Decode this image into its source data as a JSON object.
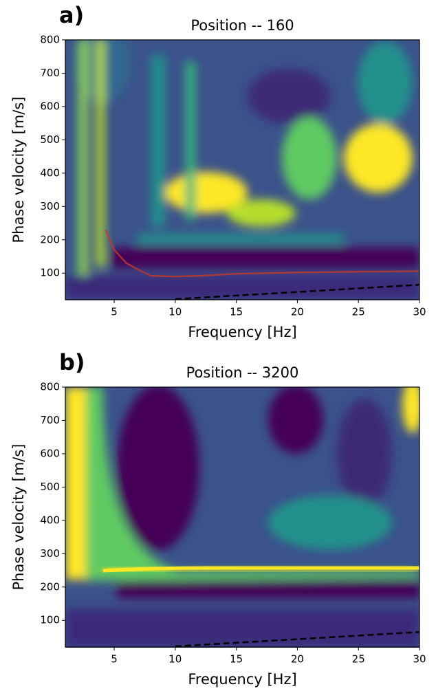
{
  "chart_data": [
    {
      "type": "heatmap",
      "panel_label": "a)",
      "title": "Position -- 160",
      "xlabel": "Frequency [Hz]",
      "ylabel": "Phase velocity [m/s]",
      "xlim": [
        1,
        30
      ],
      "ylim": [
        20,
        800
      ],
      "xticks": [
        5,
        10,
        15,
        20,
        25,
        30
      ],
      "yticks": [
        100,
        200,
        300,
        400,
        500,
        600,
        700,
        800
      ],
      "series": [
        {
          "color": "#c0392b",
          "linestyle": "solid",
          "x": [
            4.3,
            5,
            6,
            7,
            8,
            10,
            12,
            15,
            20,
            25,
            30
          ],
          "values": [
            230,
            170,
            130,
            110,
            92,
            90,
            92,
            98,
            102,
            104,
            106
          ]
        },
        {
          "color": "#000000",
          "linestyle": "dashed",
          "x": [
            10,
            30
          ],
          "values": [
            22,
            65
          ]
        }
      ]
    },
    {
      "type": "heatmap",
      "panel_label": "b)",
      "title": "Position -- 3200",
      "xlabel": "Frequency [Hz]",
      "ylabel": "Phase velocity [m/s]",
      "xlim": [
        1,
        30
      ],
      "ylim": [
        20,
        800
      ],
      "xticks": [
        5,
        10,
        15,
        20,
        25,
        30
      ],
      "yticks": [
        100,
        200,
        300,
        400,
        500,
        600,
        700,
        800
      ],
      "series": [
        {
          "color": "#000000",
          "linestyle": "dashed",
          "x": [
            10,
            30
          ],
          "values": [
            22,
            65
          ]
        }
      ]
    }
  ]
}
